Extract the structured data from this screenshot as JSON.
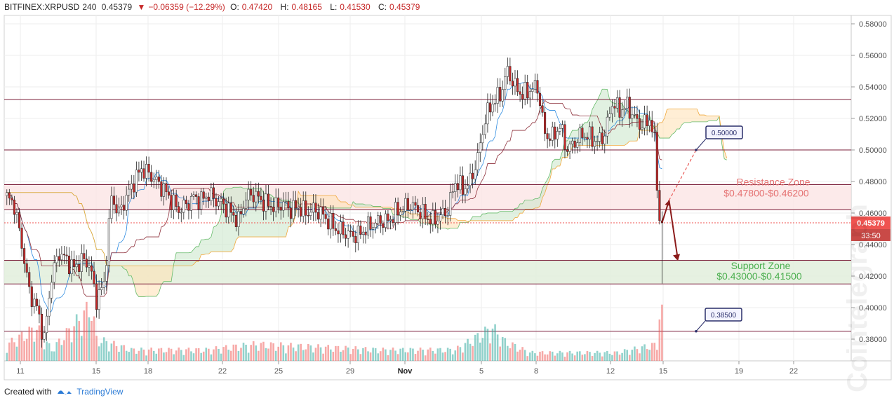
{
  "header": {
    "symbol": "BITFINEX:XRPUSD",
    "interval": "240",
    "last": "0.45379",
    "change": "−0.06359 (−12.29%)",
    "open_label": "O:",
    "open": "0.47420",
    "high_label": "H:",
    "high": "0.48165",
    "low_label": "L:",
    "low": "0.41530",
    "close_label": "C:",
    "close": "0.45379"
  },
  "footer": {
    "created_with": "Created with",
    "brand": "TradingView"
  },
  "watermark": "Cointelegraph",
  "price_tag": {
    "price": "0.45379",
    "countdown": "33:50"
  },
  "annotations": [
    {
      "name": "resistance-zone",
      "title": "Resistance Zone",
      "range": "$0.47800-$0.46200",
      "top": 0.478,
      "bottom": 0.462
    },
    {
      "name": "support-zone",
      "title": "Support Zone",
      "range": "$0.43000-$0.41500",
      "top": 0.43,
      "bottom": 0.415
    },
    {
      "name": "callout-050",
      "label": "0.50000",
      "value": 0.5
    },
    {
      "name": "callout-0385",
      "label": "0.38500",
      "value": 0.385
    }
  ],
  "colors": {
    "up": "#26a69a",
    "down": "#ef5350",
    "candle_up": "#ffffff",
    "candle_border": "#222222",
    "kumo_bull": "#c8e6c9",
    "kumo_bear": "#ffe0b2",
    "resistance_fill": "#fbe3e3",
    "support_fill": "#e2efdc",
    "level_line": "#7b1f3a"
  },
  "chart_data": {
    "type": "candlestick",
    "ylim": [
      0.37,
      0.585
    ],
    "y_ticks": [
      "0.58000",
      "0.56000",
      "0.54000",
      "0.52000",
      "0.50000",
      "0.48000",
      "0.46000",
      "0.44000",
      "0.42000",
      "0.40000",
      "0.38000"
    ],
    "x_ticks": [
      "11",
      "15",
      "18",
      "22",
      "25",
      "29",
      "Nov",
      "5",
      "8",
      "12",
      "15",
      "19",
      "22"
    ],
    "horizontal_levels": [
      0.532,
      0.5,
      0.478,
      0.462,
      0.43,
      0.415,
      0.385
    ],
    "current_price": 0.45379,
    "anchors": [
      [
        0,
        0.47
      ],
      [
        3,
        0.465
      ],
      [
        6,
        0.44
      ],
      [
        9,
        0.41
      ],
      [
        12,
        0.4
      ],
      [
        15,
        0.38
      ],
      [
        18,
        0.42
      ],
      [
        21,
        0.435
      ],
      [
        24,
        0.43
      ],
      [
        27,
        0.425
      ],
      [
        30,
        0.43
      ],
      [
        33,
        0.428
      ],
      [
        36,
        0.405
      ],
      [
        39,
        0.415
      ],
      [
        42,
        0.47
      ],
      [
        45,
        0.46
      ],
      [
        48,
        0.47
      ],
      [
        51,
        0.48
      ],
      [
        54,
        0.488
      ],
      [
        57,
        0.485
      ],
      [
        60,
        0.48
      ],
      [
        63,
        0.475
      ],
      [
        66,
        0.468
      ],
      [
        69,
        0.462
      ],
      [
        72,
        0.465
      ],
      [
        75,
        0.47
      ],
      [
        78,
        0.468
      ],
      [
        81,
        0.472
      ],
      [
        84,
        0.468
      ],
      [
        87,
        0.465
      ],
      [
        90,
        0.46
      ],
      [
        93,
        0.455
      ],
      [
        96,
        0.47
      ],
      [
        99,
        0.472
      ],
      [
        102,
        0.468
      ],
      [
        105,
        0.465
      ],
      [
        108,
        0.464
      ],
      [
        111,
        0.466
      ],
      [
        114,
        0.462
      ],
      [
        117,
        0.464
      ],
      [
        120,
        0.46
      ],
      [
        123,
        0.462
      ],
      [
        126,
        0.46
      ],
      [
        129,
        0.455
      ],
      [
        132,
        0.45
      ],
      [
        135,
        0.448
      ],
      [
        138,
        0.446
      ],
      [
        141,
        0.446
      ],
      [
        144,
        0.45
      ],
      [
        147,
        0.453
      ],
      [
        150,
        0.455
      ],
      [
        153,
        0.455
      ],
      [
        156,
        0.46
      ],
      [
        159,
        0.463
      ],
      [
        162,
        0.465
      ],
      [
        165,
        0.462
      ],
      [
        168,
        0.458
      ],
      [
        171,
        0.455
      ],
      [
        174,
        0.458
      ],
      [
        177,
        0.462
      ],
      [
        180,
        0.48
      ],
      [
        183,
        0.475
      ],
      [
        186,
        0.48
      ],
      [
        189,
        0.495
      ],
      [
        192,
        0.52
      ],
      [
        195,
        0.53
      ],
      [
        198,
        0.535
      ],
      [
        201,
        0.55
      ],
      [
        204,
        0.54
      ],
      [
        207,
        0.535
      ],
      [
        210,
        0.538
      ],
      [
        213,
        0.54
      ],
      [
        216,
        0.51
      ],
      [
        219,
        0.508
      ],
      [
        222,
        0.515
      ],
      [
        225,
        0.5
      ],
      [
        228,
        0.505
      ],
      [
        231,
        0.51
      ],
      [
        234,
        0.508
      ],
      [
        237,
        0.505
      ],
      [
        240,
        0.51
      ],
      [
        243,
        0.53
      ],
      [
        246,
        0.525
      ],
      [
        249,
        0.528
      ],
      [
        252,
        0.52
      ],
      [
        255,
        0.515
      ],
      [
        258,
        0.52
      ],
      [
        260,
        0.505
      ],
      [
        262,
        0.455
      ],
      [
        263,
        0.454
      ]
    ],
    "volume_anchors": [
      [
        0,
        0.3
      ],
      [
        12,
        0.6
      ],
      [
        18,
        0.2
      ],
      [
        34,
        1.0
      ],
      [
        36,
        0.4
      ],
      [
        50,
        0.2
      ],
      [
        80,
        0.2
      ],
      [
        100,
        0.3
      ],
      [
        150,
        0.2
      ],
      [
        180,
        0.2
      ],
      [
        195,
        0.6
      ],
      [
        200,
        0.35
      ],
      [
        210,
        0.15
      ],
      [
        245,
        0.15
      ],
      [
        261,
        0.3
      ],
      [
        262,
        0.85
      ]
    ]
  }
}
